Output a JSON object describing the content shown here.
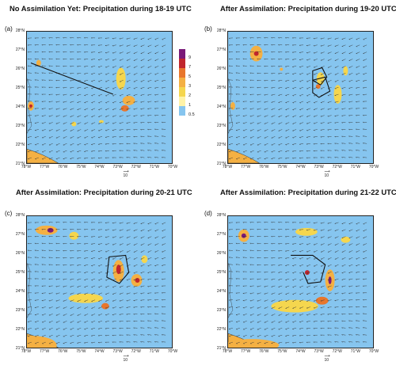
{
  "panels": [
    {
      "id": "a",
      "label": "(a)",
      "title": "No Assimilation Yet: Precipitation during 18-19 UTC"
    },
    {
      "id": "b",
      "label": "(b)",
      "title": "After Assimilation: Precipitation during 19-20 UTC"
    },
    {
      "id": "c",
      "label": "(c)",
      "title": "After Assimilation: Precipitation during 20-21 UTC"
    },
    {
      "id": "d",
      "label": "(d)",
      "title": "After Assimilation: Precipitation during 21-22 UTC"
    }
  ],
  "lat_labels": [
    "28°N",
    "27°N",
    "26°N",
    "25°N",
    "24°N",
    "23°N",
    "22°N",
    "21°N"
  ],
  "lon_labels": [
    "78°W",
    "77°W",
    "76°W",
    "75°W",
    "74°W",
    "73°W",
    "72°W",
    "71°W",
    "70°W"
  ],
  "wind_ref_label": "10",
  "colorbar": {
    "labels": [
      "9",
      "7",
      "5",
      "3",
      "2",
      "1",
      "0.5"
    ],
    "colors": [
      "#7a1a78",
      "#c0262c",
      "#e8762c",
      "#f4b043",
      "#f5d64e",
      "#fff3a8",
      "#86c5ef"
    ]
  },
  "colors": {
    "ocean": "#86c5ef",
    "land": "#f4b043"
  }
}
